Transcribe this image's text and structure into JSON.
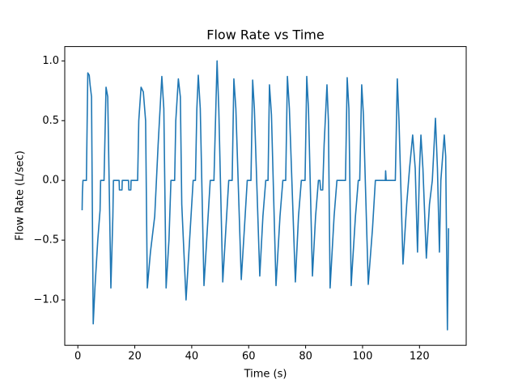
{
  "chart_data": {
    "type": "line",
    "title": "Flow Rate vs Time",
    "x_label": "Time (s)",
    "y_label": "Flow Rate (L/sec)",
    "color": "#1f77b4",
    "x": [
      1.5,
      1.6,
      1.8,
      3.0,
      3.5,
      4.0,
      4.3,
      4.8,
      5.4,
      6.0,
      7.0,
      7.8,
      8.0,
      9.2,
      9.9,
      10.5,
      11.6,
      12.3,
      12.5,
      14.5,
      14.6,
      15.5,
      15.6,
      17.8,
      17.9,
      18.6,
      18.7,
      21,
      21.4,
      22.2,
      23,
      23.8,
      24.4,
      25.5,
      27,
      28.2,
      29.5,
      30.2,
      31,
      32,
      32.7,
      34,
      34.4,
      35.3,
      36,
      36.5,
      38,
      39.5,
      40.5,
      41.3,
      41.8,
      42.3,
      43,
      44.3,
      45.5,
      46.5,
      47.8,
      48.9,
      49.5,
      50.9,
      52,
      53,
      54.2,
      54.8,
      55.5,
      57.4,
      58.5,
      59.5,
      60.8,
      61.4,
      62,
      63.9,
      65,
      66,
      66.8,
      67.3,
      68,
      69.6,
      71,
      72,
      73,
      73.6,
      74.3,
      76.4,
      77.5,
      78.5,
      79.8,
      80.4,
      81,
      82.4,
      83.5,
      84.5,
      85,
      85.3,
      86,
      86.5,
      87.5,
      88,
      88.6,
      90,
      91,
      94,
      94.6,
      95.2,
      96,
      97.5,
      98.5,
      99,
      99.7,
      100.3,
      102,
      103.5,
      104.5,
      108,
      108.1,
      108.3,
      111.5,
      112.2,
      112.8,
      114.2,
      115.5,
      116.5,
      117.6,
      118.5,
      119.3,
      120,
      120.5,
      121.2,
      122.4,
      123.5,
      124.5,
      125.6,
      126.3,
      127,
      127.5,
      128.7,
      129.2,
      129.8,
      130.2
    ],
    "values": [
      -0.25,
      -0.1,
      0,
      0,
      0.9,
      0.88,
      0.8,
      0.7,
      -1.2,
      -0.9,
      -0.5,
      -0.25,
      0,
      0,
      0.78,
      0.7,
      -0.9,
      -0.3,
      0,
      0,
      -0.08,
      -0.08,
      0,
      0,
      -0.08,
      -0.08,
      0,
      0,
      0.5,
      0.78,
      0.74,
      0.5,
      -0.9,
      -0.6,
      -0.3,
      0.3,
      0.87,
      0.6,
      -0.9,
      -0.5,
      0,
      0,
      0.5,
      0.85,
      0.7,
      -0.2,
      -1.0,
      -0.4,
      0,
      0,
      0.6,
      0.88,
      0.6,
      -0.88,
      -0.4,
      0,
      0,
      1.0,
      0.6,
      -0.85,
      -0.4,
      0,
      0,
      0.85,
      0.6,
      -0.83,
      -0.4,
      0,
      0,
      0.84,
      0.6,
      -0.8,
      -0.3,
      0,
      0,
      0.8,
      0.55,
      -0.88,
      -0.3,
      0,
      0,
      0.87,
      0.6,
      -0.85,
      -0.3,
      0,
      0,
      0.87,
      0.6,
      -0.8,
      -0.3,
      0,
      0,
      -0.08,
      -0.08,
      0.3,
      0.8,
      0.5,
      -0.9,
      -0.3,
      0,
      0,
      0.86,
      0.6,
      -0.88,
      -0.3,
      0,
      0,
      0.8,
      0.55,
      -0.87,
      -0.4,
      0,
      0,
      0.08,
      0,
      0,
      0.85,
      0.5,
      -0.7,
      -0.2,
      0.1,
      0.38,
      0.1,
      -0.6,
      0.1,
      0.38,
      0.1,
      -0.65,
      -0.2,
      0,
      0.52,
      0.1,
      -0.6,
      0,
      0.38,
      0.2,
      -1.25,
      -0.4
    ],
    "xlim": [
      -4.6,
      136.4
    ],
    "ylim": [
      -1.38,
      1.12
    ],
    "xticks": [
      0,
      20,
      40,
      60,
      80,
      100,
      120
    ],
    "yticks": [
      {
        "value": -1.0,
        "label": "−1.0"
      },
      {
        "value": -0.5,
        "label": "−0.5"
      },
      {
        "value": 0.0,
        "label": "0.0"
      },
      0.5,
      {
        "value": 1.0,
        "label": "1.0"
      }
    ]
  }
}
